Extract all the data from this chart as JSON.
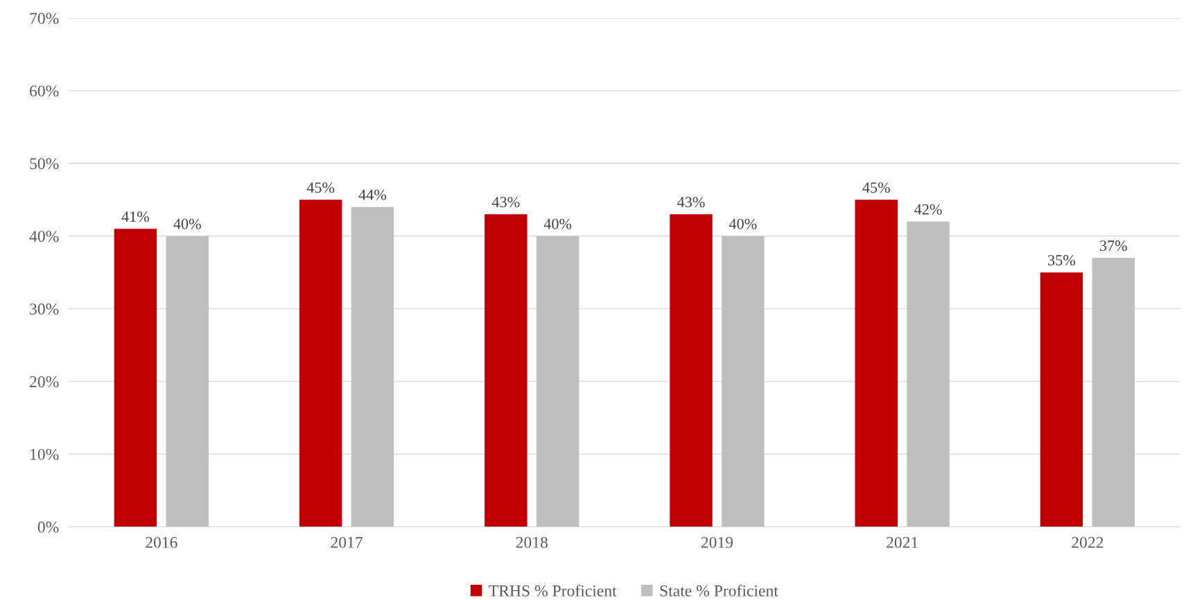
{
  "chart_data": {
    "type": "bar",
    "categories": [
      "2016",
      "2017",
      "2018",
      "2019",
      "2021",
      "2022"
    ],
    "series": [
      {
        "name": "TRHS % Proficient",
        "color": "#c00000",
        "values": [
          41,
          45,
          43,
          43,
          45,
          35
        ],
        "value_labels": [
          "41%",
          "45%",
          "43%",
          "43%",
          "45%",
          "35%"
        ]
      },
      {
        "name": "State % Proficient",
        "color": "#bfbfbf",
        "values": [
          40,
          44,
          40,
          40,
          42,
          37
        ],
        "value_labels": [
          "40%",
          "44%",
          "40%",
          "40%",
          "42%",
          "37%"
        ]
      }
    ],
    "ylim": [
      0,
      70
    ],
    "yticks": [
      {
        "value": 0,
        "label": "0%"
      },
      {
        "value": 10,
        "label": "10%"
      },
      {
        "value": 20,
        "label": "20%"
      },
      {
        "value": 30,
        "label": "30%"
      },
      {
        "value": 40,
        "label": "40%"
      },
      {
        "value": 50,
        "label": "50%"
      },
      {
        "value": 60,
        "label": "60%"
      },
      {
        "value": 70,
        "label": "70%"
      }
    ],
    "grid": "y",
    "legend": "bottom"
  }
}
